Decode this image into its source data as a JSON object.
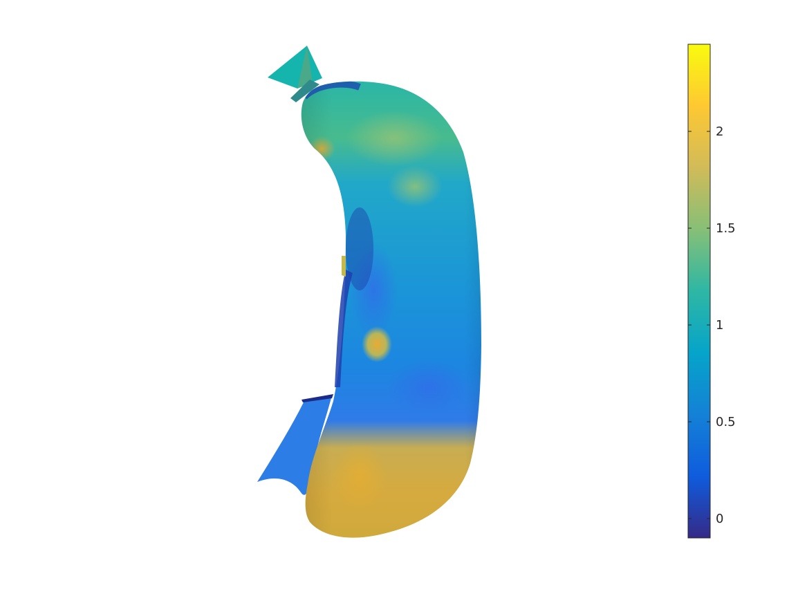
{
  "chart_data": {
    "type": "heatmap",
    "title": "",
    "xlabel": "",
    "ylabel": "",
    "colorbar": {
      "colormap": "parula",
      "limits": [
        -0.1,
        2.45
      ],
      "ticks": [
        0,
        0.5,
        1,
        1.5,
        2
      ],
      "tick_labels": [
        "0",
        "0.5",
        "1",
        "1.5",
        "2"
      ]
    },
    "surface": {
      "kind": "3-D surface patch colored by scalar value",
      "dominant_range": [
        0.6,
        1.6
      ],
      "bottom_region_range": [
        1.7,
        2.0
      ],
      "spot_value": 1.9
    },
    "axes_visible": false,
    "grid": false
  },
  "colors": {
    "parula": [
      "#352a87",
      "#0f5cdd",
      "#1481d6",
      "#06a4ca",
      "#2eb7a4",
      "#87bf77",
      "#d1bb59",
      "#fec832",
      "#f9fb0e"
    ],
    "edge_dark": "#1a2b8a",
    "background": "#ffffff"
  }
}
